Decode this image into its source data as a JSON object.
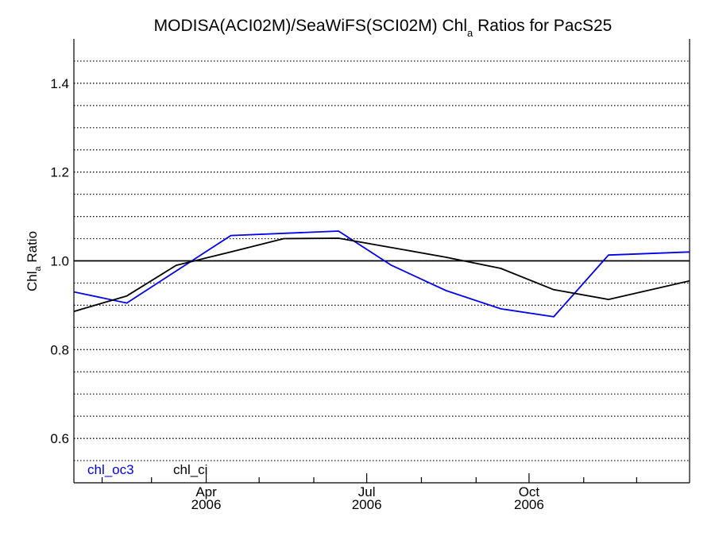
{
  "chart_data": {
    "type": "line",
    "title": {
      "prefix": "MODISA(ACI02M)/SeaWiFS(SCI02M)  Chl",
      "subscript": "a",
      "suffix": " Ratios for PacS25"
    },
    "ylabel": {
      "main": "Chl",
      "subscript": "a",
      "suffix": " Ratio"
    },
    "xlim": [
      "2006-01-16",
      "2006-12-31"
    ],
    "ylim": [
      0.5,
      1.5
    ],
    "y_ticks": [
      {
        "value": 0.6,
        "label": "0.6"
      },
      {
        "value": 0.8,
        "label": "0.8"
      },
      {
        "value": 1.0,
        "label": "1.0"
      },
      {
        "value": 1.2,
        "label": "1.2"
      },
      {
        "value": 1.4,
        "label": "1.4"
      }
    ],
    "y_gridlines": [
      0.55,
      0.6,
      0.65,
      0.7,
      0.75,
      0.8,
      0.85,
      0.9,
      0.95,
      1.05,
      1.1,
      1.15,
      1.2,
      1.25,
      1.3,
      1.35,
      1.4,
      1.45
    ],
    "grid": "dotted horizontal",
    "reference_line": 1.0,
    "x_major_ticks": [
      {
        "date": "2006-04-01",
        "label_top": "Apr",
        "label_bottom": "2006"
      },
      {
        "date": "2006-07-01",
        "label_top": "Jul",
        "label_bottom": "2006"
      },
      {
        "date": "2006-10-01",
        "label_top": "Oct",
        "label_bottom": "2006"
      }
    ],
    "x_minor_ticks": [
      "2006-02-01",
      "2006-03-01",
      "2006-05-01",
      "2006-06-01",
      "2006-08-01",
      "2006-09-01",
      "2006-11-01",
      "2006-12-01"
    ],
    "legend_position": "bottom-left",
    "series": [
      {
        "name": "chl_oc3",
        "color": "#0000ee",
        "points": [
          {
            "date": "2006-01-16",
            "value": 0.93
          },
          {
            "date": "2006-02-15",
            "value": 0.905
          },
          {
            "date": "2006-04-15",
            "value": 1.057
          },
          {
            "date": "2006-06-15",
            "value": 1.067
          },
          {
            "date": "2006-07-15",
            "value": 0.99
          },
          {
            "date": "2006-08-15",
            "value": 0.933
          },
          {
            "date": "2006-09-15",
            "value": 0.892
          },
          {
            "date": "2006-10-15",
            "value": 0.874
          },
          {
            "date": "2006-11-15",
            "value": 1.013
          },
          {
            "date": "2006-12-31",
            "value": 1.02
          }
        ]
      },
      {
        "name": "chl_ci",
        "color": "#000000",
        "points": [
          {
            "date": "2006-01-16",
            "value": 0.886
          },
          {
            "date": "2006-02-15",
            "value": 0.921
          },
          {
            "date": "2006-03-15",
            "value": 0.99
          },
          {
            "date": "2006-04-15",
            "value": 1.02
          },
          {
            "date": "2006-05-15",
            "value": 1.05
          },
          {
            "date": "2006-06-15",
            "value": 1.051
          },
          {
            "date": "2006-07-15",
            "value": 1.03
          },
          {
            "date": "2006-08-15",
            "value": 1.008
          },
          {
            "date": "2006-09-15",
            "value": 0.983
          },
          {
            "date": "2006-10-15",
            "value": 0.935
          },
          {
            "date": "2006-11-15",
            "value": 0.913
          },
          {
            "date": "2006-12-31",
            "value": 0.955
          }
        ]
      }
    ]
  }
}
